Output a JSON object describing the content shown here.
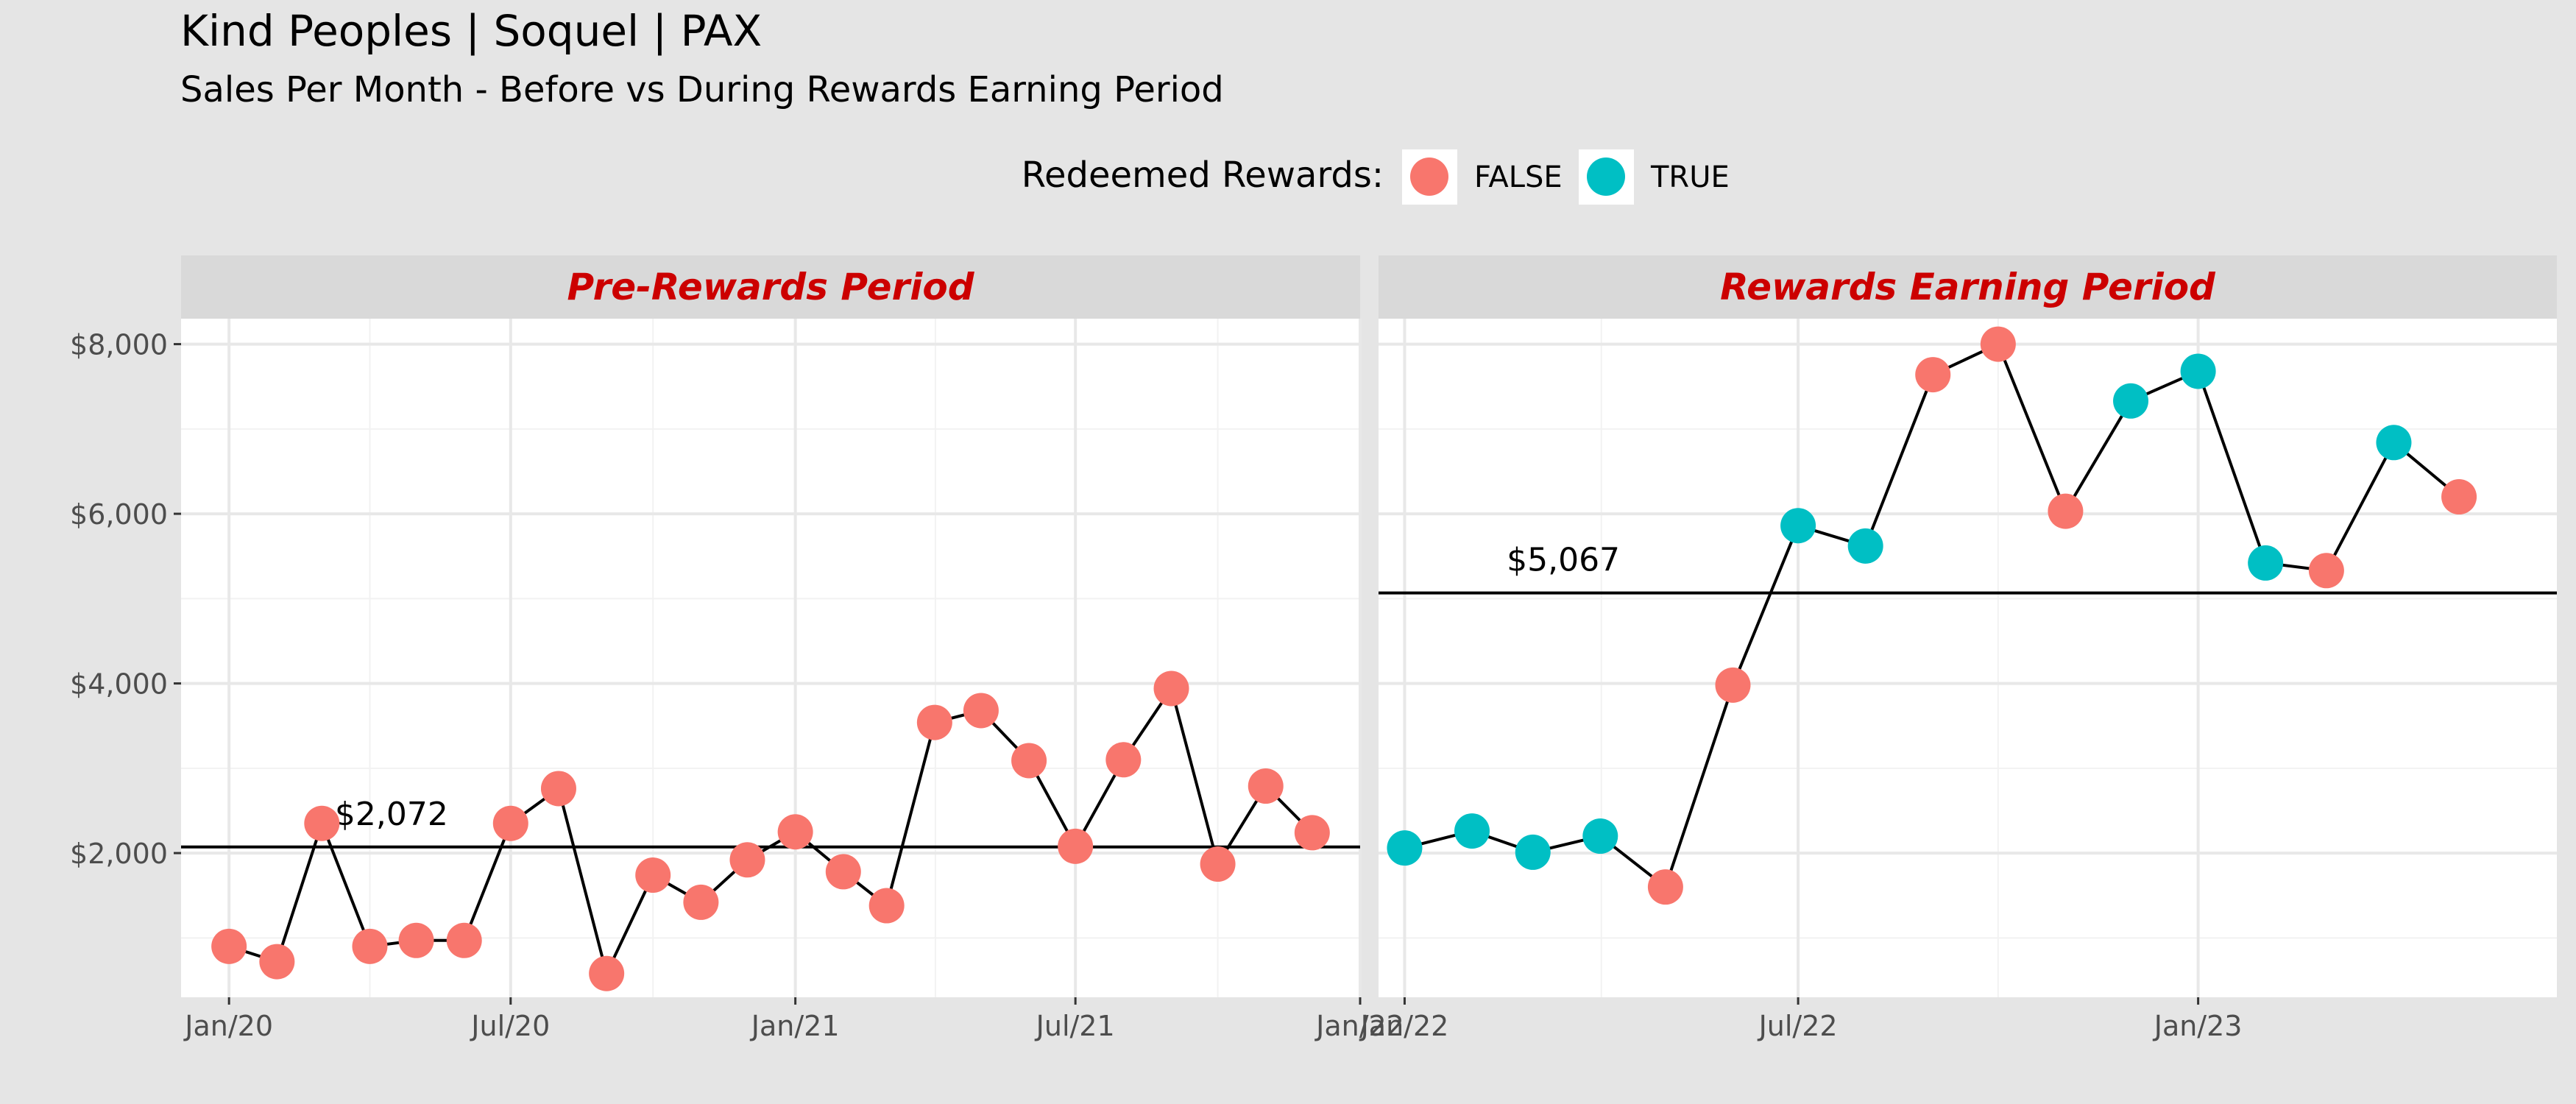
{
  "title": "Kind Peoples | Soquel | PAX",
  "subtitle": "Sales Per Month - Before vs During Rewards Earning Period",
  "legend": {
    "title": "Redeemed Rewards:",
    "items": [
      {
        "label": "FALSE",
        "color": "#F8766D"
      },
      {
        "label": "TRUE",
        "color": "#00BFC4"
      }
    ]
  },
  "colors": {
    "background": "#e5e5e5",
    "panel": "#ffffff",
    "strip": "#d9d9d9",
    "strip_text": "#cc0000",
    "false": "#F8766D",
    "true": "#00BFC4"
  },
  "chart_data": [
    {
      "type": "line",
      "panel_title": "Pre-Rewards Period",
      "ylim": [
        300,
        8300
      ],
      "y_ticks": [
        2000,
        4000,
        6000,
        8000
      ],
      "y_tick_labels": [
        "$2,000",
        "$4,000",
        "$6,000",
        "$8,000"
      ],
      "x_range": [
        "2019-12-01",
        "2022-01-01"
      ],
      "x_ticks": [
        "2020-01-01",
        "2020-07-01",
        "2021-01-01",
        "2021-07-01",
        "2022-01-01"
      ],
      "x_tick_labels": [
        "Jan/20",
        "Jul/20",
        "Jan/21",
        "Jul/21",
        "Jan/22"
      ],
      "mean": 2072,
      "mean_label": "$2,072",
      "points": [
        {
          "x": "2020-01-01",
          "y": 900,
          "redeemed": false
        },
        {
          "x": "2020-02-01",
          "y": 720,
          "redeemed": false
        },
        {
          "x": "2020-03-01",
          "y": 2350,
          "redeemed": false
        },
        {
          "x": "2020-04-01",
          "y": 900,
          "redeemed": false
        },
        {
          "x": "2020-05-01",
          "y": 970,
          "redeemed": false
        },
        {
          "x": "2020-06-01",
          "y": 970,
          "redeemed": false
        },
        {
          "x": "2020-07-01",
          "y": 2350,
          "redeemed": false
        },
        {
          "x": "2020-08-01",
          "y": 2760,
          "redeemed": false
        },
        {
          "x": "2020-09-01",
          "y": 580,
          "redeemed": false
        },
        {
          "x": "2020-10-01",
          "y": 1740,
          "redeemed": false
        },
        {
          "x": "2020-11-01",
          "y": 1420,
          "redeemed": false
        },
        {
          "x": "2020-12-01",
          "y": 1920,
          "redeemed": false
        },
        {
          "x": "2021-01-01",
          "y": 2250,
          "redeemed": false
        },
        {
          "x": "2021-02-01",
          "y": 1780,
          "redeemed": false
        },
        {
          "x": "2021-03-01",
          "y": 1380,
          "redeemed": false
        },
        {
          "x": "2021-04-01",
          "y": 3540,
          "redeemed": false
        },
        {
          "x": "2021-05-01",
          "y": 3680,
          "redeemed": false
        },
        {
          "x": "2021-06-01",
          "y": 3090,
          "redeemed": false
        },
        {
          "x": "2021-07-01",
          "y": 2080,
          "redeemed": false
        },
        {
          "x": "2021-08-01",
          "y": 3100,
          "redeemed": false
        },
        {
          "x": "2021-09-01",
          "y": 3940,
          "redeemed": false
        },
        {
          "x": "2021-10-01",
          "y": 1870,
          "redeemed": false
        },
        {
          "x": "2021-11-01",
          "y": 2790,
          "redeemed": false
        },
        {
          "x": "2021-12-01",
          "y": 2240,
          "redeemed": false
        }
      ]
    },
    {
      "type": "line",
      "panel_title": "Rewards Earning Period",
      "ylim": [
        300,
        8300
      ],
      "y_ticks": [
        2000,
        4000,
        6000,
        8000
      ],
      "y_tick_labels": [
        "$2,000",
        "$4,000",
        "$6,000",
        "$8,000"
      ],
      "x_range": [
        "2021-12-20",
        "2023-06-15"
      ],
      "x_ticks": [
        "2022-01-01",
        "2022-07-01",
        "2023-01-01"
      ],
      "x_tick_labels": [
        "Jan/22",
        "Jul/22",
        "Jan/23"
      ],
      "mean": 5067,
      "mean_label": "$5,067",
      "points": [
        {
          "x": "2022-01-01",
          "y": 2060,
          "redeemed": true
        },
        {
          "x": "2022-02-01",
          "y": 2260,
          "redeemed": true
        },
        {
          "x": "2022-03-01",
          "y": 2010,
          "redeemed": true
        },
        {
          "x": "2022-04-01",
          "y": 2200,
          "redeemed": true
        },
        {
          "x": "2022-05-01",
          "y": 1600,
          "redeemed": false
        },
        {
          "x": "2022-06-01",
          "y": 3980,
          "redeemed": false
        },
        {
          "x": "2022-07-01",
          "y": 5860,
          "redeemed": true
        },
        {
          "x": "2022-08-01",
          "y": 5620,
          "redeemed": true
        },
        {
          "x": "2022-09-01",
          "y": 7640,
          "redeemed": false
        },
        {
          "x": "2022-10-01",
          "y": 8000,
          "redeemed": false
        },
        {
          "x": "2022-11-01",
          "y": 6030,
          "redeemed": false
        },
        {
          "x": "2022-12-01",
          "y": 7330,
          "redeemed": true
        },
        {
          "x": "2023-01-01",
          "y": 7680,
          "redeemed": true
        },
        {
          "x": "2023-02-01",
          "y": 5420,
          "redeemed": true
        },
        {
          "x": "2023-03-01",
          "y": 5330,
          "redeemed": false
        },
        {
          "x": "2023-04-01",
          "y": 6840,
          "redeemed": true
        },
        {
          "x": "2023-05-01",
          "y": 6200,
          "redeemed": false
        }
      ]
    }
  ]
}
